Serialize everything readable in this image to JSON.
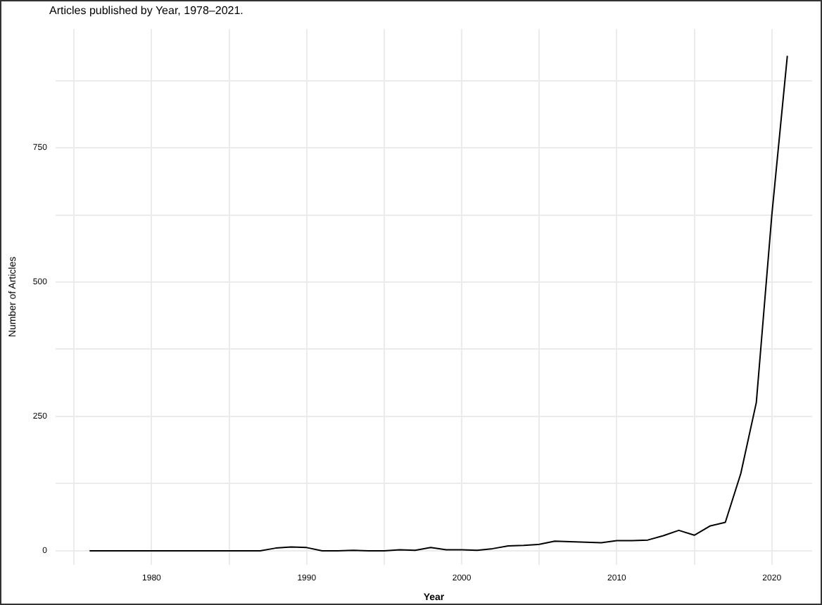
{
  "chart_data": {
    "type": "line",
    "title": "Articles published by Year, 1978–2021.",
    "xlabel": "Year",
    "ylabel": "Number of Articles",
    "x": [
      1976,
      1977,
      1978,
      1979,
      1980,
      1981,
      1982,
      1983,
      1984,
      1985,
      1986,
      1987,
      1988,
      1989,
      1990,
      1991,
      1992,
      1993,
      1994,
      1995,
      1996,
      1997,
      1998,
      1999,
      2000,
      2001,
      2002,
      2003,
      2004,
      2005,
      2006,
      2007,
      2008,
      2009,
      2010,
      2011,
      2012,
      2013,
      2014,
      2015,
      2016,
      2017,
      2018,
      2019,
      2020,
      2021
    ],
    "series": [
      {
        "color": "#000000",
        "values": [
          0,
          0,
          0,
          0,
          0,
          0,
          0,
          0,
          0,
          0,
          0,
          0,
          5,
          7,
          6,
          0,
          0,
          1,
          0,
          0,
          2,
          1,
          6,
          2,
          2,
          1,
          4,
          9,
          10,
          12,
          18,
          17,
          16,
          15,
          19,
          19,
          20,
          28,
          38,
          29,
          46,
          53,
          144,
          276,
          625,
          921
        ]
      }
    ],
    "xlim": [
      1973.8,
      2022.6
    ],
    "xticks": [
      {
        "value": 1975,
        "label": null
      },
      1980,
      {
        "value": 1985,
        "label": null
      },
      1990,
      {
        "value": 1995,
        "label": null
      },
      2000,
      {
        "value": 2005,
        "label": null
      },
      2010,
      {
        "value": 2015,
        "label": null
      },
      2020
    ],
    "ylim": [
      -26,
      971
    ],
    "yticks": [
      0,
      {
        "value": 125,
        "label": null
      },
      250,
      {
        "value": 375,
        "label": null
      },
      500,
      {
        "value": 625,
        "label": null
      },
      750,
      {
        "value": 875,
        "label": null
      }
    ],
    "grid": true,
    "legend": false,
    "marker": "none",
    "line_style": "solid"
  }
}
